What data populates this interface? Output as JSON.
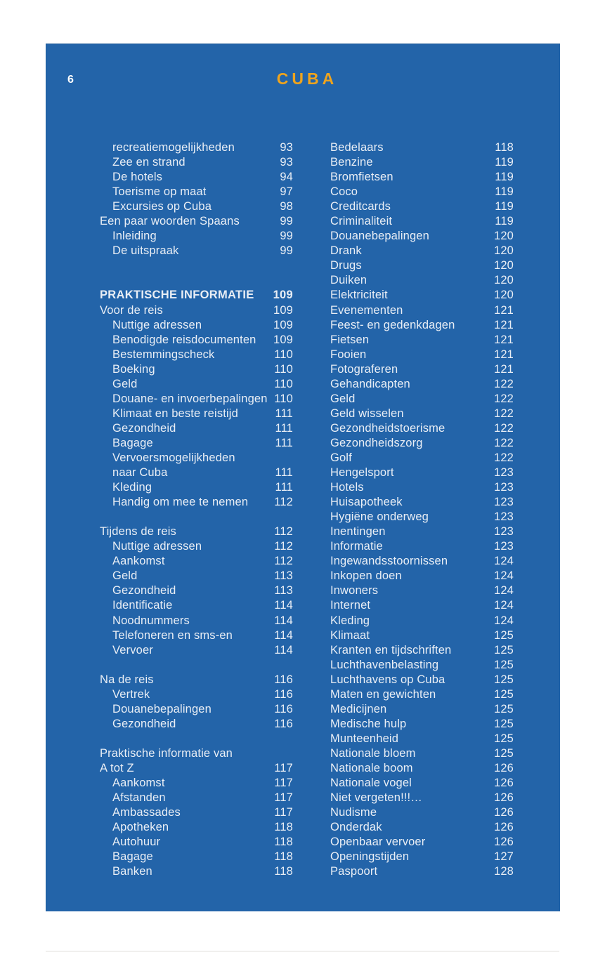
{
  "page": {
    "number": "6",
    "title": "CUBA",
    "colors": {
      "panel_blue": "#2364a9",
      "title_orange": "#efa41d",
      "text": "#e9eef5"
    }
  },
  "toc": {
    "left_column": [
      {
        "label": "recreatiemogelijkheden",
        "page": "93",
        "indent": 1
      },
      {
        "label": "Zee en strand",
        "page": "93",
        "indent": 1
      },
      {
        "label": "De hotels",
        "page": "94",
        "indent": 1
      },
      {
        "label": "Toerisme op maat",
        "page": "97",
        "indent": 1
      },
      {
        "label": "Excursies op Cuba",
        "page": "98",
        "indent": 1
      },
      {
        "label": "Een paar woorden Spaans",
        "page": "99",
        "indent": 0
      },
      {
        "label": "Inleiding",
        "page": "99",
        "indent": 1
      },
      {
        "label": "De uitspraak",
        "page": "99",
        "indent": 1
      },
      {
        "blank": true
      },
      {
        "blank": true
      },
      {
        "label": "PRAKTISCHE INFORMATIE",
        "page": "109",
        "indent": 0,
        "bold": true
      },
      {
        "label": "Voor de reis",
        "page": "109",
        "indent": 0
      },
      {
        "label": "Nuttige adressen",
        "page": "109",
        "indent": 1
      },
      {
        "label": "Benodigde reisdocumenten",
        "page": "109",
        "indent": 1
      },
      {
        "label": "Bestemmingscheck",
        "page": "110",
        "indent": 1
      },
      {
        "label": "Boeking",
        "page": "110",
        "indent": 1
      },
      {
        "label": "Geld",
        "page": "110",
        "indent": 1
      },
      {
        "label": "Douane- en invoerbepalingen",
        "page": "110",
        "indent": 1
      },
      {
        "label": "Klimaat en beste reistijd",
        "page": "111",
        "indent": 1
      },
      {
        "label": "Gezondheid",
        "page": "111",
        "indent": 1
      },
      {
        "label": "Bagage",
        "page": "111",
        "indent": 1
      },
      {
        "label": "Vervoersmogelijkheden",
        "page": "",
        "indent": 1
      },
      {
        "label": "naar Cuba",
        "page": "111",
        "indent": 1
      },
      {
        "label": "Kleding",
        "page": "111",
        "indent": 1
      },
      {
        "label": "Handig om mee te nemen",
        "page": "112",
        "indent": 1
      },
      {
        "blank": true
      },
      {
        "label": "Tijdens de reis",
        "page": "112",
        "indent": 0
      },
      {
        "label": "Nuttige adressen",
        "page": "112",
        "indent": 1
      },
      {
        "label": "Aankomst",
        "page": "112",
        "indent": 1
      },
      {
        "label": "Geld",
        "page": "113",
        "indent": 1
      },
      {
        "label": "Gezondheid",
        "page": "113",
        "indent": 1
      },
      {
        "label": "Identificatie",
        "page": "114",
        "indent": 1
      },
      {
        "label": "Noodnummers",
        "page": "114",
        "indent": 1
      },
      {
        "label": "Telefoneren en sms-en",
        "page": "114",
        "indent": 1
      },
      {
        "label": "Vervoer",
        "page": "114",
        "indent": 1
      },
      {
        "blank": true
      },
      {
        "label": "Na de reis",
        "page": "116",
        "indent": 0
      },
      {
        "label": "Vertrek",
        "page": "116",
        "indent": 1
      },
      {
        "label": "Douanebepalingen",
        "page": "116",
        "indent": 1
      },
      {
        "label": "Gezondheid",
        "page": "116",
        "indent": 1
      },
      {
        "blank": true
      },
      {
        "label": "Praktische informatie van",
        "page": "",
        "indent": 0
      },
      {
        "label": "A tot Z",
        "page": "117",
        "indent": 0
      },
      {
        "label": "Aankomst",
        "page": "117",
        "indent": 1
      },
      {
        "label": "Afstanden",
        "page": "117",
        "indent": 1
      },
      {
        "label": "Ambassades",
        "page": "117",
        "indent": 1
      },
      {
        "label": "Apotheken",
        "page": "118",
        "indent": 1
      },
      {
        "label": "Autohuur",
        "page": "118",
        "indent": 1
      },
      {
        "label": "Bagage",
        "page": "118",
        "indent": 1
      },
      {
        "label": "Banken",
        "page": "118",
        "indent": 1
      }
    ],
    "right_column": [
      {
        "label": "Bedelaars",
        "page": "118",
        "indent": 0
      },
      {
        "label": "Benzine",
        "page": "119",
        "indent": 0
      },
      {
        "label": "Bromfietsen",
        "page": "119",
        "indent": 0
      },
      {
        "label": "Coco",
        "page": "119",
        "indent": 0
      },
      {
        "label": "Creditcards",
        "page": "119",
        "indent": 0
      },
      {
        "label": "Criminaliteit",
        "page": "119",
        "indent": 0
      },
      {
        "label": "Douanebepalingen",
        "page": "120",
        "indent": 0
      },
      {
        "label": "Drank",
        "page": "120",
        "indent": 0
      },
      {
        "label": "Drugs",
        "page": "120",
        "indent": 0
      },
      {
        "label": "Duiken",
        "page": "120",
        "indent": 0
      },
      {
        "label": "Elektriciteit",
        "page": "120",
        "indent": 0
      },
      {
        "label": "Evenementen",
        "page": "121",
        "indent": 0
      },
      {
        "label": "Feest- en gedenkdagen",
        "page": "121",
        "indent": 0
      },
      {
        "label": "Fietsen",
        "page": "121",
        "indent": 0
      },
      {
        "label": "Fooien",
        "page": "121",
        "indent": 0
      },
      {
        "label": "Fotograferen",
        "page": "121",
        "indent": 0
      },
      {
        "label": "Gehandicapten",
        "page": "122",
        "indent": 0
      },
      {
        "label": "Geld",
        "page": "122",
        "indent": 0
      },
      {
        "label": "Geld wisselen",
        "page": "122",
        "indent": 0
      },
      {
        "label": "Gezondheidstoerisme",
        "page": "122",
        "indent": 0
      },
      {
        "label": "Gezondheidszorg",
        "page": "122",
        "indent": 0
      },
      {
        "label": "Golf",
        "page": "122",
        "indent": 0
      },
      {
        "label": "Hengelsport",
        "page": "123",
        "indent": 0
      },
      {
        "label": "Hotels",
        "page": "123",
        "indent": 0
      },
      {
        "label": "Huisapotheek",
        "page": "123",
        "indent": 0
      },
      {
        "label": "Hygiëne onderweg",
        "page": "123",
        "indent": 0
      },
      {
        "label": "Inentingen",
        "page": "123",
        "indent": 0
      },
      {
        "label": "Informatie",
        "page": "123",
        "indent": 0
      },
      {
        "label": "Ingewandsstoornissen",
        "page": "124",
        "indent": 0
      },
      {
        "label": "Inkopen doen",
        "page": "124",
        "indent": 0
      },
      {
        "label": "Inwoners",
        "page": "124",
        "indent": 0
      },
      {
        "label": "Internet",
        "page": "124",
        "indent": 0
      },
      {
        "label": "Kleding",
        "page": "124",
        "indent": 0
      },
      {
        "label": "Klimaat",
        "page": "125",
        "indent": 0
      },
      {
        "label": "Kranten en tijdschriften",
        "page": "125",
        "indent": 0
      },
      {
        "label": "Luchthavenbelasting",
        "page": "125",
        "indent": 0
      },
      {
        "label": "Luchthavens op Cuba",
        "page": "125",
        "indent": 0
      },
      {
        "label": "Maten en gewichten",
        "page": "125",
        "indent": 0
      },
      {
        "label": "Medicijnen",
        "page": "125",
        "indent": 0
      },
      {
        "label": "Medische hulp",
        "page": "125",
        "indent": 0
      },
      {
        "label": "Munteenheid",
        "page": "125",
        "indent": 0
      },
      {
        "label": "Nationale bloem",
        "page": "125",
        "indent": 0
      },
      {
        "label": "Nationale boom",
        "page": "126",
        "indent": 0
      },
      {
        "label": "Nationale vogel",
        "page": "126",
        "indent": 0
      },
      {
        "label": "Niet vergeten!!!…",
        "page": "126",
        "indent": 0
      },
      {
        "label": "Nudisme",
        "page": "126",
        "indent": 0
      },
      {
        "label": "Onderdak",
        "page": "126",
        "indent": 0
      },
      {
        "label": "Openbaar vervoer",
        "page": "126",
        "indent": 0
      },
      {
        "label": "Openingstijden",
        "page": "127",
        "indent": 0
      },
      {
        "label": "Paspoort",
        "page": "128",
        "indent": 0
      }
    ]
  }
}
